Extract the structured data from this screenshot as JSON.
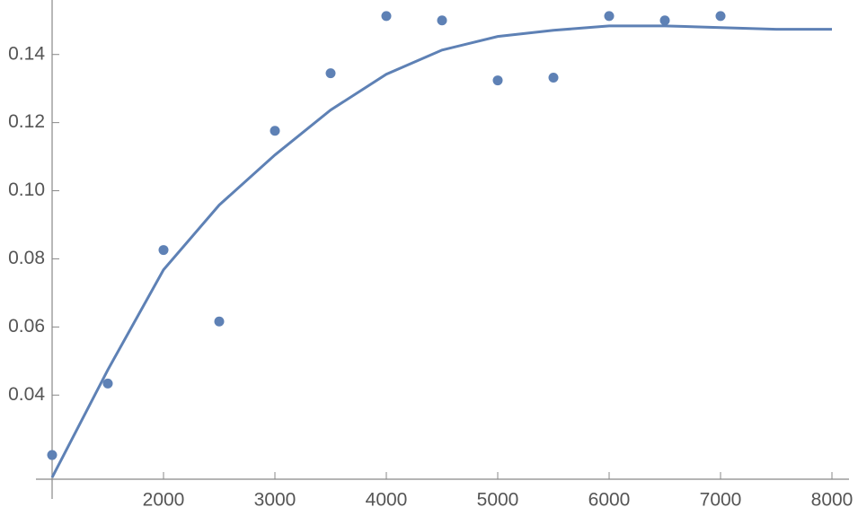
{
  "chart_data": {
    "type": "scatter",
    "series": [
      {
        "mode": "points",
        "color": "#5e81b5",
        "x": [
          1000,
          1500,
          2000,
          2500,
          3000,
          3500,
          4000,
          4500,
          5000,
          5500,
          6000,
          6500,
          7000
        ],
        "values": [
          0.0224,
          0.0434,
          0.0826,
          0.0616,
          0.1176,
          0.1345,
          0.1513,
          0.15,
          0.1324,
          0.1332,
          0.1513,
          0.15,
          0.1513
        ]
      },
      {
        "mode": "line",
        "color": "#5e81b5",
        "x": [
          1000,
          1500,
          2000,
          2500,
          3000,
          3500,
          4000,
          4500,
          5000,
          5500,
          6000,
          6500,
          7000,
          7500,
          8000
        ],
        "values": [
          0.0158,
          0.0474,
          0.0768,
          0.0958,
          0.1105,
          0.1237,
          0.1342,
          0.1413,
          0.1453,
          0.1471,
          0.1484,
          0.1484,
          0.1479,
          0.1474,
          0.1474
        ]
      }
    ],
    "xlim": [
      1000,
      8150
    ],
    "ylim": [
      0.0153,
      0.156
    ],
    "xticks": [
      2000,
      3000,
      4000,
      5000,
      6000,
      7000,
      8000
    ],
    "yticks": [
      0.04,
      0.06,
      0.08,
      {
        "value": 0.1,
        "label": "0.10"
      },
      0.12,
      0.14
    ],
    "grid": false
  }
}
